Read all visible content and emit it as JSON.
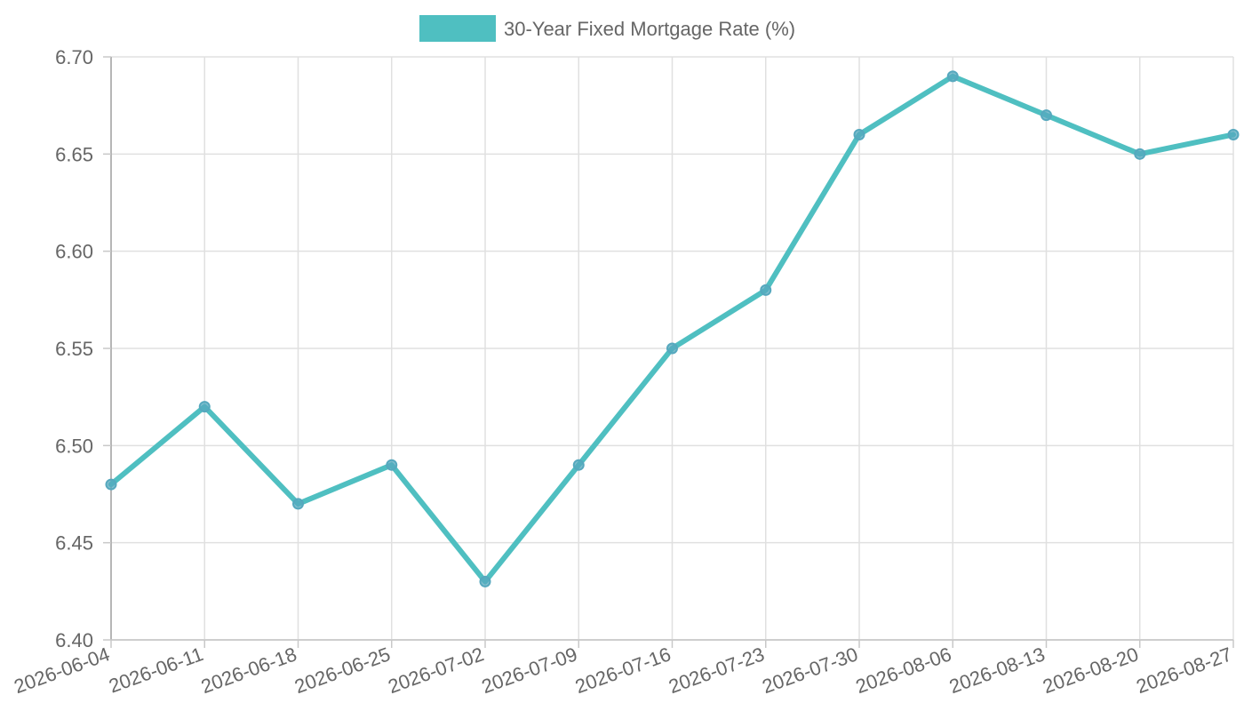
{
  "chart_data": {
    "type": "line",
    "x": [
      "2026-06-04",
      "2026-06-11",
      "2026-06-18",
      "2026-06-25",
      "2026-07-02",
      "2026-07-09",
      "2026-07-16",
      "2026-07-23",
      "2026-07-30",
      "2026-08-06",
      "2026-08-13",
      "2026-08-20",
      "2026-08-27"
    ],
    "series": [
      {
        "name": "30-Year Fixed Mortgage Rate (%)",
        "values": [
          6.48,
          6.52,
          6.47,
          6.49,
          6.43,
          6.49,
          6.55,
          6.58,
          6.66,
          6.69,
          6.67,
          6.65,
          6.66
        ],
        "color": "#4fbfc1",
        "point_color": "#56a8be"
      }
    ],
    "ylim": [
      6.4,
      6.7
    ],
    "yticks": [
      "6.40",
      "6.45",
      "6.50",
      "6.55",
      "6.60",
      "6.65",
      "6.70"
    ],
    "grid": true,
    "legend": "top-center",
    "title": "",
    "xlabel": "",
    "ylabel": ""
  }
}
